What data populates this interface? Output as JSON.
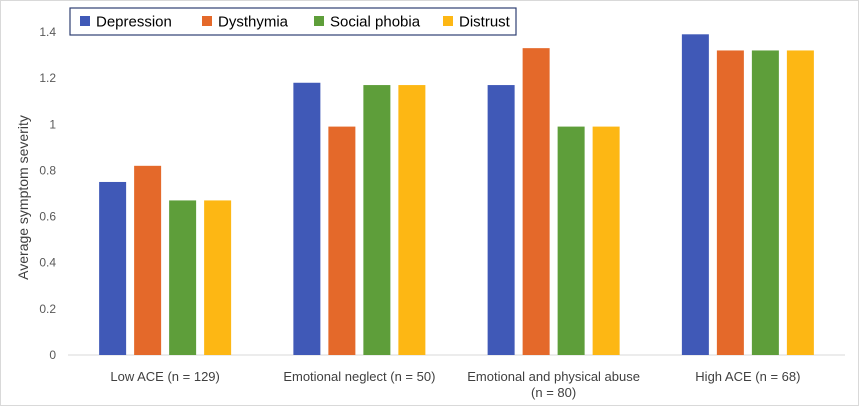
{
  "chart_data": {
    "type": "bar",
    "ylabel": "Average symptom severity",
    "ylim": [
      0,
      1.4
    ],
    "yticks": [
      "0",
      "0.2",
      "0.4",
      "0.6",
      "0.8",
      "1",
      "1.2",
      "1.4"
    ],
    "grid": false,
    "legend_position": "top-left",
    "categories": [
      [
        "Low ACE (n = 129)"
      ],
      [
        "Emotional neglect (n = 50)"
      ],
      [
        "Emotional and physical abuse",
        "(n = 80)"
      ],
      [
        "High ACE (n = 68)"
      ]
    ],
    "series": [
      {
        "name": "Depression",
        "color": "#4059B7",
        "values": [
          0.75,
          1.18,
          1.17,
          1.39
        ]
      },
      {
        "name": "Dysthymia",
        "color": "#E4692A",
        "values": [
          0.82,
          0.99,
          1.33,
          1.32
        ]
      },
      {
        "name": "Social phobia",
        "color": "#5E9E3A",
        "values": [
          0.67,
          1.17,
          0.99,
          1.32
        ]
      },
      {
        "name": "Distrust",
        "color": "#FDB714",
        "values": [
          0.67,
          1.17,
          0.99,
          1.32
        ]
      }
    ]
  }
}
